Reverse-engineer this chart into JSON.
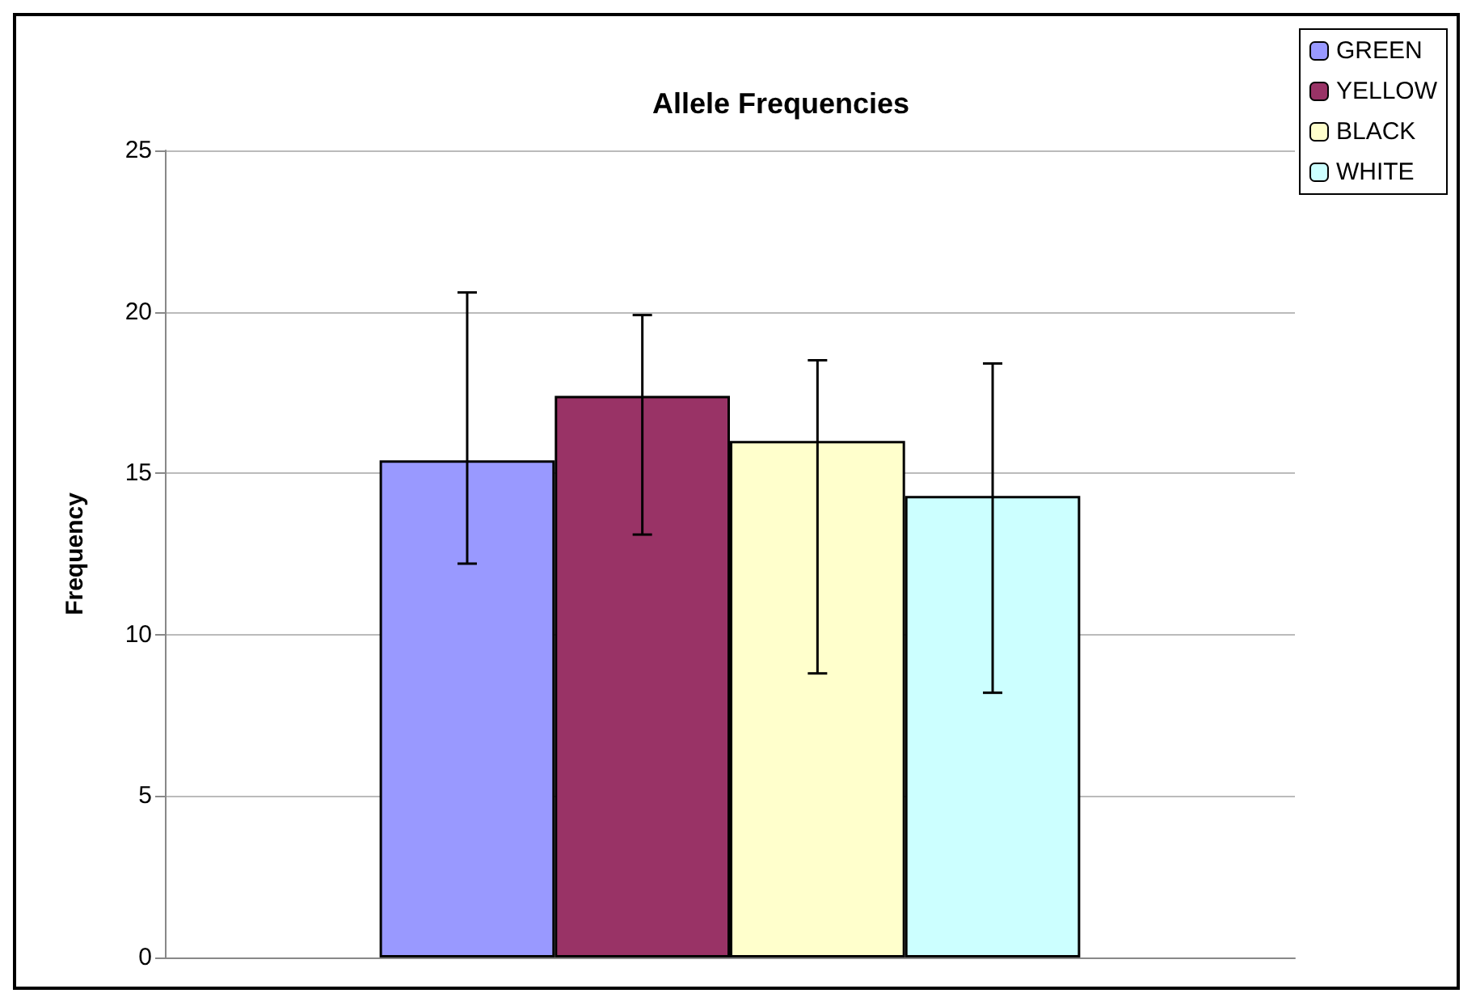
{
  "chart_data": {
    "type": "bar",
    "title": "Allele Frequencies",
    "ylabel": "Frequency",
    "categories": [
      null
    ],
    "series": [
      {
        "name": "GREEN",
        "color": "#9999ff",
        "values": [
          15.4
        ],
        "errors": [
          [
            12.2,
            20.6
          ]
        ]
      },
      {
        "name": "YELLOW",
        "color": "#993366",
        "values": [
          17.4
        ],
        "errors": [
          [
            13.1,
            19.9
          ]
        ]
      },
      {
        "name": "BLACK",
        "color": "#ffffcc",
        "values": [
          16.0
        ],
        "errors": [
          [
            8.8,
            18.5
          ]
        ]
      },
      {
        "name": "WHITE",
        "color": "#ccffff",
        "values": [
          14.3
        ],
        "errors": [
          [
            8.2,
            18.4
          ]
        ]
      }
    ],
    "ylim": [
      0,
      25
    ],
    "yticks": [
      0,
      5,
      10,
      15,
      20,
      25
    ],
    "grid": "y",
    "legend": "top right"
  }
}
